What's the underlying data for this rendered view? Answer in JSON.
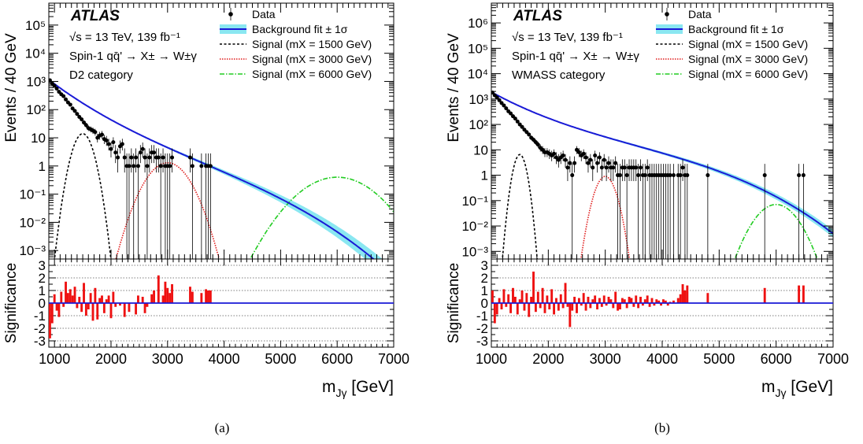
{
  "chart_data": [
    {
      "type": "scatter",
      "panel_label": "(a)",
      "experiment": "ATLAS",
      "info_lines": [
        "√s = 13 TeV, 139 fb⁻¹",
        "Spin-1 qq̄' → X± → W±γ",
        "D2 category"
      ],
      "xlabel": "m",
      "xlabel_sub": "Jγ",
      "xlabel_unit": " [GeV]",
      "ylabel": "Events / 40 GeV",
      "ylabel_lower": "Significance",
      "xlim": [
        900,
        7000
      ],
      "ylim": [
        0.0005,
        600000
      ],
      "ylim_lower": [
        -3.5,
        3.5
      ],
      "log_y": true,
      "x_ticks": [
        "1000",
        "2000",
        "3000",
        "4000",
        "5000",
        "6000",
        "7000"
      ],
      "y_ticks": [
        "10⁻³",
        "10⁻²",
        "10⁻¹",
        "1",
        "10",
        "10²",
        "10³",
        "10⁴",
        "10⁵"
      ],
      "sig_ticks": [
        "-3",
        "-2",
        "-1",
        "0",
        "1",
        "2",
        "3"
      ],
      "legend_position": "top-right",
      "legend": {
        "data": "Data",
        "bkg": "Background fit ± 1σ",
        "s1500": "Signal (mX = 1500 GeV)",
        "s3000": "Signal (mX = 3000 GeV)",
        "s6000": "Signal (mX = 6000 GeV)"
      },
      "colors": {
        "data": "#000000",
        "bkg_line": "#1a1ad6",
        "bkg_band": "#29d3e6",
        "s1500": "#000000",
        "s3000": "#e01b1b",
        "s6000": "#22cc22",
        "sig_bars": "#ee1111"
      },
      "background": {
        "norm": 1150,
        "x0": 900,
        "a": 3.5,
        "b": 0.55,
        "c": 0.67,
        "band": [
          [
            900,
            0.03
          ],
          [
            2000,
            0.05
          ],
          [
            3000,
            0.08
          ],
          [
            4000,
            0.18
          ],
          [
            5000,
            0.35
          ],
          [
            6000,
            0.6
          ],
          [
            7000,
            0.9
          ]
        ]
      },
      "data_points": [
        [
          920,
          1100
        ],
        [
          960,
          850
        ],
        [
          1000,
          700
        ],
        [
          1040,
          560
        ],
        [
          1080,
          430
        ],
        [
          1120,
          350
        ],
        [
          1160,
          300
        ],
        [
          1200,
          230
        ],
        [
          1240,
          180
        ],
        [
          1280,
          150
        ],
        [
          1320,
          110
        ],
        [
          1360,
          90
        ],
        [
          1400,
          70
        ],
        [
          1440,
          55
        ],
        [
          1480,
          45
        ],
        [
          1520,
          35
        ],
        [
          1560,
          28
        ],
        [
          1600,
          22
        ],
        [
          1640,
          20
        ],
        [
          1680,
          18
        ],
        [
          1720,
          16
        ],
        [
          1760,
          10
        ],
        [
          1800,
          12
        ],
        [
          1840,
          13
        ],
        [
          1880,
          9
        ],
        [
          1920,
          8
        ],
        [
          1960,
          6
        ],
        [
          2000,
          4
        ],
        [
          2040,
          7
        ],
        [
          2080,
          3
        ],
        [
          2120,
          2
        ],
        [
          2160,
          5
        ],
        [
          2200,
          6
        ],
        [
          2240,
          2
        ],
        [
          2280,
          1
        ],
        [
          2320,
          1
        ],
        [
          2360,
          2
        ],
        [
          2400,
          1
        ],
        [
          2440,
          2
        ],
        [
          2480,
          1
        ],
        [
          2520,
          3
        ],
        [
          2560,
          4
        ],
        [
          2600,
          2
        ],
        [
          2640,
          1
        ],
        [
          2680,
          2
        ],
        [
          2720,
          3
        ],
        [
          2760,
          3
        ],
        [
          2800,
          2
        ],
        [
          2840,
          2
        ],
        [
          2880,
          1
        ],
        [
          2920,
          2
        ],
        [
          2960,
          1
        ],
        [
          3000,
          1
        ],
        [
          3040,
          1
        ],
        [
          3080,
          2
        ],
        [
          3400,
          2
        ],
        [
          3440,
          1
        ],
        [
          3600,
          1
        ],
        [
          3680,
          1
        ],
        [
          3720,
          1
        ],
        [
          3760,
          1
        ]
      ],
      "signals": [
        {
          "key": "s1500",
          "mass": 1500,
          "peak": 14,
          "width": 110
        },
        {
          "key": "s3000",
          "mass": 3000,
          "peak": 1.3,
          "width": 230
        },
        {
          "key": "s6000",
          "mass": 6000,
          "peak": 0.4,
          "width": 420
        }
      ],
      "significance": [
        [
          920,
          -2.8
        ],
        [
          960,
          -1.6
        ],
        [
          1000,
          0.7
        ],
        [
          1040,
          -0.6
        ],
        [
          1080,
          -1.1
        ],
        [
          1120,
          0.9
        ],
        [
          1160,
          -0.3
        ],
        [
          1200,
          1.7
        ],
        [
          1240,
          0.8
        ],
        [
          1280,
          1.1
        ],
        [
          1320,
          0.6
        ],
        [
          1360,
          1.3
        ],
        [
          1400,
          -0.4
        ],
        [
          1440,
          0.5
        ],
        [
          1480,
          -0.7
        ],
        [
          1520,
          1.6
        ],
        [
          1560,
          -1.0
        ],
        [
          1600,
          -0.5
        ],
        [
          1640,
          0.8
        ],
        [
          1680,
          -1.4
        ],
        [
          1720,
          1.2
        ],
        [
          1760,
          -1.3
        ],
        [
          1800,
          0.4
        ],
        [
          1840,
          0.6
        ],
        [
          1880,
          -0.8
        ],
        [
          1920,
          0.3
        ],
        [
          1960,
          0.6
        ],
        [
          2000,
          -1.2
        ],
        [
          2040,
          0.9
        ],
        [
          2080,
          -0.3
        ],
        [
          2160,
          -0.2
        ],
        [
          2240,
          -1.1
        ],
        [
          2320,
          -0.7
        ],
        [
          2440,
          -0.9
        ],
        [
          2480,
          0.6
        ],
        [
          2560,
          0.5
        ],
        [
          2600,
          -0.8
        ],
        [
          2640,
          -0.3
        ],
        [
          2720,
          0.7
        ],
        [
          2760,
          1.0
        ],
        [
          2840,
          2.2
        ],
        [
          2920,
          0.6
        ],
        [
          2960,
          1.7
        ],
        [
          3000,
          1.2
        ],
        [
          3040,
          0.8
        ],
        [
          3080,
          1.5
        ],
        [
          3400,
          1.3
        ],
        [
          3440,
          0.9
        ],
        [
          3600,
          0.8
        ],
        [
          3680,
          1.1
        ],
        [
          3720,
          1.0
        ],
        [
          3760,
          1.0
        ]
      ]
    },
    {
      "type": "scatter",
      "panel_label": "(b)",
      "experiment": "ATLAS",
      "info_lines": [
        "√s = 13 TeV, 139 fb⁻¹",
        "Spin-1 qq̄' → X± → W±γ",
        "WMASS category"
      ],
      "xlabel": "m",
      "xlabel_sub": "Jγ",
      "xlabel_unit": " [GeV]",
      "ylabel": "Events / 40 GeV",
      "ylabel_lower": "Significance",
      "xlim": [
        1000,
        7000
      ],
      "ylim": [
        0.0005,
        6000000
      ],
      "ylim_lower": [
        -3.5,
        3.5
      ],
      "log_y": true,
      "x_ticks": [
        "1000",
        "2000",
        "3000",
        "4000",
        "5000",
        "6000",
        "7000"
      ],
      "y_ticks": [
        "10⁻³",
        "10⁻²",
        "10⁻¹",
        "1",
        "10",
        "10²",
        "10³",
        "10⁴",
        "10⁵",
        "10⁶"
      ],
      "sig_ticks": [
        "-3",
        "-2",
        "-1",
        "0",
        "1",
        "2",
        "3"
      ],
      "legend_position": "top-right",
      "legend": {
        "data": "Data",
        "bkg": "Background fit ± 1σ",
        "s1500": "Signal (mX = 1500 GeV)",
        "s3000": "Signal (mX = 3000 GeV)",
        "s6000": "Signal (mX = 6000 GeV)"
      },
      "colors": {
        "data": "#000000",
        "bkg_line": "#1a1ad6",
        "bkg_band": "#29d3e6",
        "s1500": "#000000",
        "s3000": "#e01b1b",
        "s6000": "#22cc22",
        "sig_bars": "#ee1111"
      },
      "background": {
        "norm": 1900,
        "x0": 1000,
        "a": 2.85,
        "b": 0.55,
        "c": 0.72,
        "band": [
          [
            1000,
            0.03
          ],
          [
            2000,
            0.05
          ],
          [
            3000,
            0.08
          ],
          [
            4000,
            0.12
          ],
          [
            5000,
            0.2
          ],
          [
            6000,
            0.3
          ],
          [
            7000,
            0.4
          ]
        ]
      },
      "data_points": [
        [
          1020,
          1800
        ],
        [
          1060,
          1400
        ],
        [
          1100,
          1150
        ],
        [
          1140,
          900
        ],
        [
          1180,
          700
        ],
        [
          1220,
          560
        ],
        [
          1260,
          430
        ],
        [
          1300,
          330
        ],
        [
          1340,
          270
        ],
        [
          1380,
          210
        ],
        [
          1420,
          170
        ],
        [
          1460,
          130
        ],
        [
          1500,
          100
        ],
        [
          1540,
          80
        ],
        [
          1580,
          62
        ],
        [
          1620,
          50
        ],
        [
          1660,
          40
        ],
        [
          1700,
          30
        ],
        [
          1740,
          25
        ],
        [
          1780,
          20
        ],
        [
          1820,
          16
        ],
        [
          1860,
          12
        ],
        [
          1900,
          10
        ],
        [
          1940,
          8
        ],
        [
          1980,
          8
        ],
        [
          2020,
          7
        ],
        [
          2060,
          6
        ],
        [
          2100,
          7
        ],
        [
          2140,
          5
        ],
        [
          2180,
          4
        ],
        [
          2220,
          5
        ],
        [
          2260,
          6
        ],
        [
          2300,
          4
        ],
        [
          2340,
          2
        ],
        [
          2380,
          3
        ],
        [
          2420,
          1
        ],
        [
          2460,
          3
        ],
        [
          2500,
          10
        ],
        [
          2540,
          8
        ],
        [
          2580,
          6
        ],
        [
          2620,
          7
        ],
        [
          2660,
          5
        ],
        [
          2700,
          3
        ],
        [
          2740,
          4
        ],
        [
          2780,
          2
        ],
        [
          2820,
          6
        ],
        [
          2860,
          3
        ],
        [
          2900,
          5
        ],
        [
          2940,
          2
        ],
        [
          2980,
          4
        ],
        [
          3020,
          2
        ],
        [
          3060,
          3
        ],
        [
          3100,
          2
        ],
        [
          3140,
          2
        ],
        [
          3180,
          3
        ],
        [
          3220,
          1
        ],
        [
          3260,
          1
        ],
        [
          3300,
          2
        ],
        [
          3340,
          2
        ],
        [
          3380,
          1
        ],
        [
          3420,
          2
        ],
        [
          3460,
          2
        ],
        [
          3500,
          2
        ],
        [
          3540,
          2
        ],
        [
          3580,
          1
        ],
        [
          3620,
          2
        ],
        [
          3660,
          1
        ],
        [
          3700,
          1
        ],
        [
          3740,
          2
        ],
        [
          3780,
          1
        ],
        [
          3820,
          1
        ],
        [
          3860,
          1
        ],
        [
          3900,
          1
        ],
        [
          3940,
          1
        ],
        [
          3980,
          1
        ],
        [
          4020,
          1
        ],
        [
          4060,
          1
        ],
        [
          4100,
          1
        ],
        [
          4140,
          1
        ],
        [
          4200,
          1
        ],
        [
          4280,
          1
        ],
        [
          4320,
          1
        ],
        [
          4360,
          2
        ],
        [
          4400,
          1
        ],
        [
          4440,
          1
        ],
        [
          4800,
          1
        ],
        [
          5800,
          1
        ],
        [
          6400,
          1
        ],
        [
          6480,
          1
        ]
      ],
      "signals": [
        {
          "key": "s1500",
          "mass": 1500,
          "peak": 6.5,
          "width": 70
        },
        {
          "key": "s3000",
          "mass": 3000,
          "peak": 0.9,
          "width": 110
        },
        {
          "key": "s6000",
          "mass": 6000,
          "peak": 0.07,
          "width": 230
        }
      ],
      "significance": [
        [
          1020,
          1.0
        ],
        [
          1060,
          -1.6
        ],
        [
          1100,
          -0.9
        ],
        [
          1140,
          0.4
        ],
        [
          1180,
          -0.5
        ],
        [
          1220,
          1.1
        ],
        [
          1260,
          -0.3
        ],
        [
          1300,
          0.7
        ],
        [
          1340,
          -0.8
        ],
        [
          1380,
          1.2
        ],
        [
          1420,
          0.5
        ],
        [
          1460,
          -0.9
        ],
        [
          1500,
          0.3
        ],
        [
          1540,
          1.0
        ],
        [
          1580,
          -0.6
        ],
        [
          1620,
          0.8
        ],
        [
          1660,
          -1.1
        ],
        [
          1700,
          0.5
        ],
        [
          1740,
          2.5
        ],
        [
          1780,
          -0.7
        ],
        [
          1820,
          0.9
        ],
        [
          1860,
          -0.4
        ],
        [
          1900,
          1.2
        ],
        [
          1940,
          -0.8
        ],
        [
          1980,
          0.6
        ],
        [
          2020,
          -0.5
        ],
        [
          2060,
          1.1
        ],
        [
          2100,
          -0.9
        ],
        [
          2140,
          0.4
        ],
        [
          2180,
          -0.6
        ],
        [
          2220,
          0.7
        ],
        [
          2260,
          -0.4
        ],
        [
          2300,
          1.6
        ],
        [
          2340,
          -0.3
        ],
        [
          2380,
          -1.9
        ],
        [
          2420,
          -0.6
        ],
        [
          2460,
          0.5
        ],
        [
          2500,
          -0.8
        ],
        [
          2540,
          0.4
        ],
        [
          2580,
          -0.2
        ],
        [
          2620,
          0.8
        ],
        [
          2660,
          -0.6
        ],
        [
          2700,
          0.5
        ],
        [
          2740,
          -0.4
        ],
        [
          2780,
          0.3
        ],
        [
          2820,
          0.6
        ],
        [
          2860,
          -0.5
        ],
        [
          2900,
          0.4
        ],
        [
          2940,
          -0.3
        ],
        [
          2980,
          0.6
        ],
        [
          3020,
          -0.2
        ],
        [
          3060,
          0.5
        ],
        [
          3100,
          0.3
        ],
        [
          3140,
          -0.4
        ],
        [
          3180,
          0.9
        ],
        [
          3220,
          -0.6
        ],
        [
          3260,
          -0.5
        ],
        [
          3300,
          0.4
        ],
        [
          3340,
          0.3
        ],
        [
          3380,
          -0.4
        ],
        [
          3420,
          0.5
        ],
        [
          3460,
          0.4
        ],
        [
          3500,
          -0.3
        ],
        [
          3540,
          0.6
        ],
        [
          3580,
          -0.4
        ],
        [
          3620,
          0.5
        ],
        [
          3660,
          -0.2
        ],
        [
          3700,
          0.3
        ],
        [
          3740,
          0.6
        ],
        [
          3780,
          -0.3
        ],
        [
          3820,
          0.4
        ],
        [
          3860,
          -0.2
        ],
        [
          3900,
          0.3
        ],
        [
          3940,
          0.2
        ],
        [
          3980,
          -0.2
        ],
        [
          4020,
          0.3
        ],
        [
          4060,
          0.2
        ],
        [
          4100,
          -0.2
        ],
        [
          4140,
          0.1
        ],
        [
          4200,
          0.2
        ],
        [
          4280,
          0.4
        ],
        [
          4320,
          0.7
        ],
        [
          4360,
          1.5
        ],
        [
          4400,
          1.0
        ],
        [
          4440,
          1.4
        ],
        [
          4800,
          0.8
        ],
        [
          5800,
          1.2
        ],
        [
          6400,
          1.4
        ],
        [
          6480,
          1.4
        ]
      ]
    }
  ]
}
